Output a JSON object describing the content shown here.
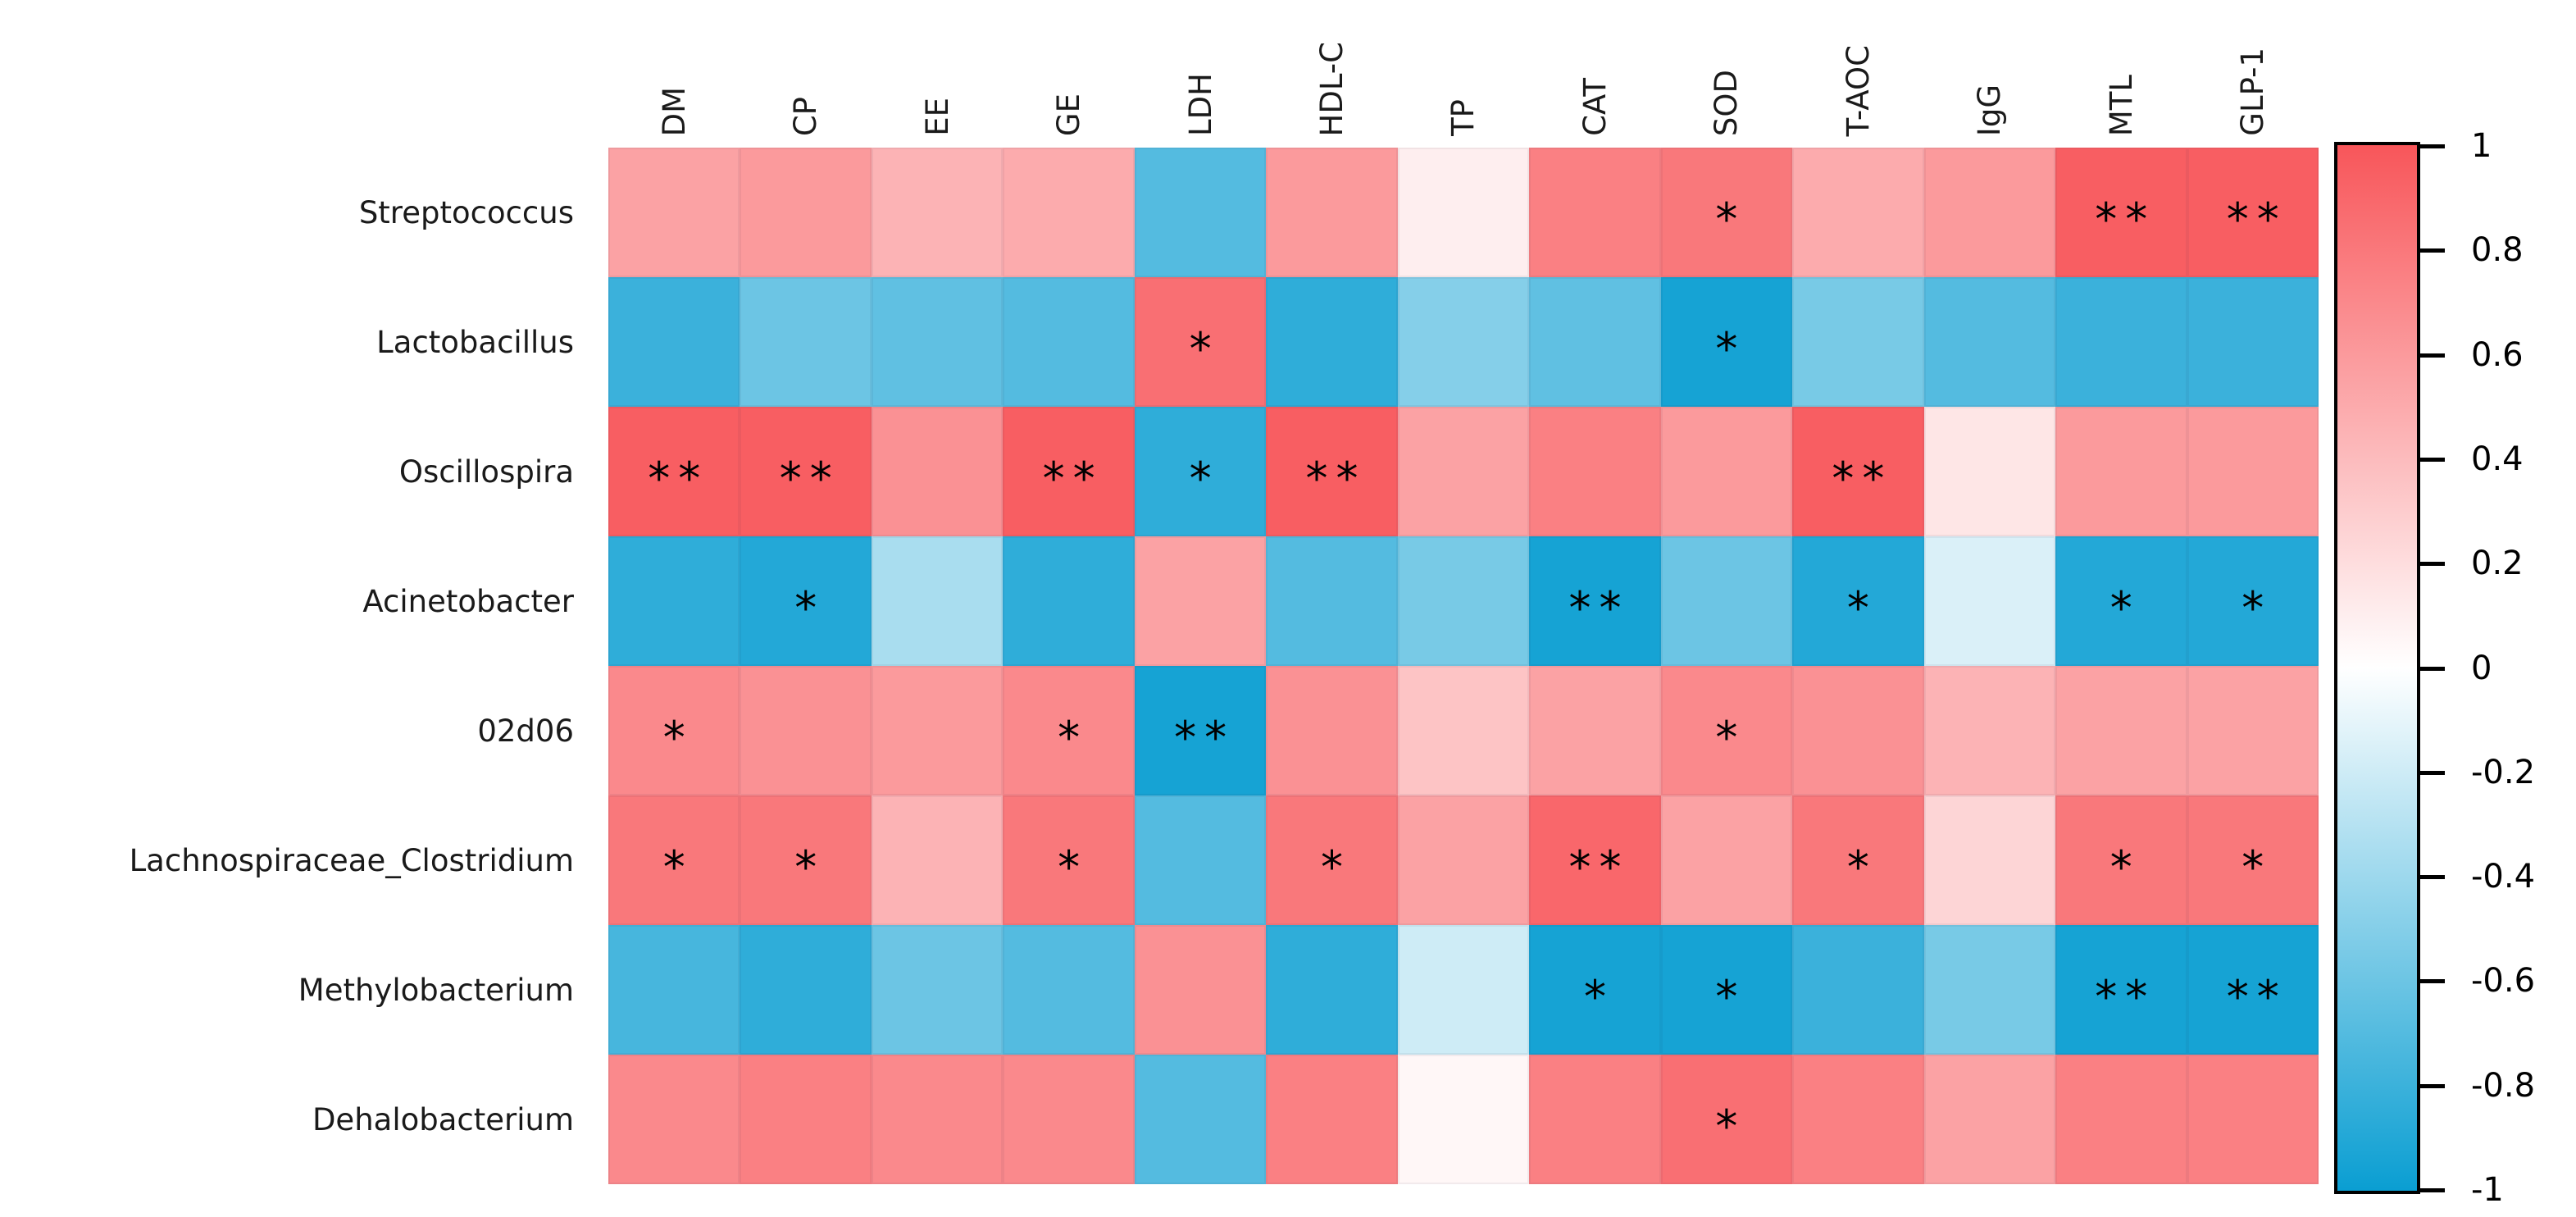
{
  "chart_data": {
    "type": "heatmap",
    "title": "",
    "description": "Correlation heatmap between gut microbiota genera and serum/biochemical parameters with significance markers",
    "columns": [
      "DM",
      "CP",
      "EE",
      "GE",
      "LDH",
      "HDL-C",
      "TP",
      "CAT",
      "SOD",
      "T-AOC",
      "IgG",
      "MTL",
      "GLP-1"
    ],
    "rows": [
      "Streptococcus",
      "Lactobacillus",
      "Oscillospira",
      "Acinetobacter",
      "02d06",
      "Lachnospiraceae_Clostridium",
      "Methylobacterium",
      "Dehalobacterium"
    ],
    "values": [
      [
        0.55,
        0.6,
        0.45,
        0.5,
        -0.7,
        0.6,
        0.1,
        0.75,
        0.8,
        0.5,
        0.6,
        0.95,
        0.95
      ],
      [
        -0.8,
        -0.6,
        -0.65,
        -0.7,
        0.85,
        -0.85,
        -0.5,
        -0.65,
        -0.95,
        -0.55,
        -0.7,
        -0.8,
        -0.8
      ],
      [
        0.95,
        0.95,
        0.65,
        0.95,
        -0.85,
        0.95,
        0.55,
        0.75,
        0.6,
        0.95,
        0.15,
        0.6,
        0.6
      ],
      [
        -0.85,
        -0.9,
        -0.35,
        -0.85,
        0.55,
        -0.7,
        -0.55,
        -0.95,
        -0.6,
        -0.9,
        -0.15,
        -0.9,
        -0.9
      ],
      [
        0.7,
        0.65,
        0.6,
        0.7,
        -0.95,
        0.65,
        0.35,
        0.55,
        0.7,
        0.65,
        0.45,
        0.55,
        0.55
      ],
      [
        0.8,
        0.8,
        0.45,
        0.8,
        -0.7,
        0.8,
        0.55,
        0.9,
        0.55,
        0.8,
        0.25,
        0.8,
        0.8
      ],
      [
        -0.75,
        -0.85,
        -0.6,
        -0.7,
        0.65,
        -0.85,
        -0.2,
        -0.95,
        -0.95,
        -0.8,
        -0.55,
        -0.95,
        -0.95
      ],
      [
        0.7,
        0.75,
        0.7,
        0.7,
        -0.7,
        0.75,
        0.05,
        0.75,
        0.85,
        0.75,
        0.55,
        0.75,
        0.75
      ]
    ],
    "significance": [
      [
        "",
        "",
        "",
        "",
        "",
        "",
        "",
        "",
        "*",
        "",
        "",
        "**",
        "**"
      ],
      [
        "",
        "",
        "",
        "",
        "*",
        "",
        "",
        "",
        "*",
        "",
        "",
        "",
        ""
      ],
      [
        "**",
        "**",
        "",
        "**",
        "*",
        "**",
        "",
        "",
        "",
        "**",
        "",
        "",
        ""
      ],
      [
        "",
        "*",
        "",
        "",
        "",
        "",
        "",
        "**",
        "",
        "*",
        "",
        "*",
        "*"
      ],
      [
        "*",
        "",
        "",
        "*",
        "**",
        "",
        "",
        "",
        "*",
        "",
        "",
        "",
        ""
      ],
      [
        "*",
        "*",
        "",
        "*",
        "",
        "*",
        "",
        "**",
        "",
        "*",
        "",
        "*",
        "*"
      ],
      [
        "",
        "",
        "",
        "",
        "",
        "",
        "",
        "*",
        "*",
        "",
        "",
        "**",
        "**"
      ],
      [
        "",
        "",
        "",
        "",
        "",
        "",
        "",
        "",
        "*",
        "",
        "",
        "",
        ""
      ]
    ],
    "colorbar": {
      "min": -1,
      "max": 1,
      "tick_labels": [
        "1",
        "0.8",
        "0.6",
        "0.4",
        "0.2",
        "0",
        "-0.2",
        "-0.4",
        "-0.6",
        "-0.8",
        "-1"
      ],
      "tick_values": [
        1,
        0.8,
        0.6,
        0.4,
        0.2,
        0,
        -0.2,
        -0.4,
        -0.6,
        -0.8,
        -1
      ],
      "positive_color": "#F8565A",
      "zero_color": "#FFFFFF",
      "negative_color": "#0A9ED2"
    },
    "marker_color": "#000000",
    "legend_position": "right",
    "grid": false
  }
}
